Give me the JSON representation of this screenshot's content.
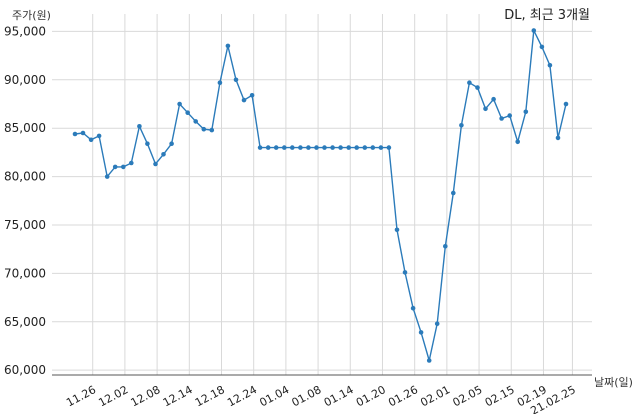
{
  "chart_data": {
    "type": "line",
    "title": "DL, 최근 3개월",
    "ylabel": "주가(원)",
    "xlabel": "날짜(일)",
    "ylim": [
      59500,
      96800
    ],
    "yticks": [
      60000,
      65000,
      70000,
      75000,
      80000,
      85000,
      90000,
      95000
    ],
    "ytick_labels": [
      "60,000",
      "65,000",
      "70,000",
      "75,000",
      "80,000",
      "85,000",
      "90,000",
      "95,000"
    ],
    "xticks": [
      {
        "index": 2.2,
        "label": "11.26"
      },
      {
        "index": 6.2,
        "label": "12.02"
      },
      {
        "index": 10.2,
        "label": "12.08"
      },
      {
        "index": 14.2,
        "label": "12.14"
      },
      {
        "index": 18.2,
        "label": "12.18"
      },
      {
        "index": 22.2,
        "label": "12.24"
      },
      {
        "index": 26.2,
        "label": "01.04"
      },
      {
        "index": 30.2,
        "label": "01.08"
      },
      {
        "index": 34.2,
        "label": "01.14"
      },
      {
        "index": 38.2,
        "label": "01.20"
      },
      {
        "index": 42.2,
        "label": "01.26"
      },
      {
        "index": 46.2,
        "label": "02.01"
      },
      {
        "index": 50.2,
        "label": "02.05"
      },
      {
        "index": 54.2,
        "label": "02.15"
      },
      {
        "index": 58.2,
        "label": "02.19"
      },
      {
        "index": 61.8,
        "label": "21.02.25"
      }
    ],
    "grid": true,
    "series": [
      {
        "color": "#2b7bba",
        "values": [
          84400,
          84500,
          83800,
          84200,
          80000,
          81000,
          81000,
          81400,
          85200,
          83400,
          81300,
          82300,
          83400,
          87500,
          86600,
          85700,
          84900,
          84800,
          89700,
          93500,
          90000,
          87900,
          88400,
          83000,
          83000,
          83000,
          83000,
          83000,
          83000,
          83000,
          83000,
          83000,
          83000,
          83000,
          83000,
          83000,
          83000,
          83000,
          83000,
          83000,
          74500,
          70100,
          66400,
          63900,
          61000,
          64800,
          72800,
          78300,
          85300,
          89700,
          89200,
          87000,
          88000,
          86000,
          86300,
          83600,
          86700,
          95100,
          93400,
          91500,
          84000,
          87500
        ]
      }
    ]
  }
}
